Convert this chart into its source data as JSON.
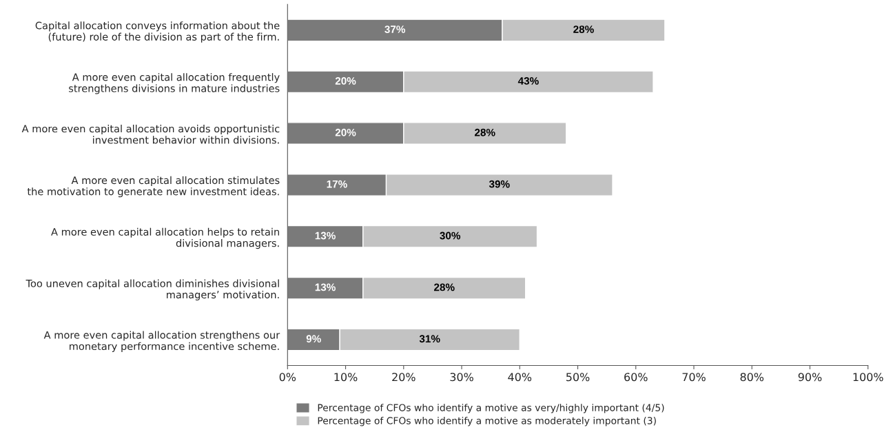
{
  "chart_data": {
    "type": "bar",
    "orientation": "horizontal",
    "stacked": true,
    "legend": "bottom",
    "grid": false,
    "categories": [
      "Capital allocation conveys information about the\n(future) role of the division as part of the firm.",
      "A more even capital allocation frequently\nstrengthens divisions in mature industries",
      "A more even capital allocation avoids opportunistic\ninvestment behavior within divisions.",
      "A more even capital allocation stimulates\nthe motivation to generate new investment ideas.",
      "A more even capital allocation helps to retain\ndivisional managers.",
      "Too uneven capital allocation diminishes divisional\nmanagers’ motivation.",
      "A more even capital allocation strengthens our\nmonetary performance incentive scheme."
    ],
    "series": [
      {
        "name": "Percentage of CFOs who identify a motive as very/highly important (4/5)",
        "color": "#7a7a7a",
        "values": [
          37,
          20,
          20,
          17,
          13,
          13,
          9
        ],
        "value_labels": [
          "37%",
          "20%",
          "20%",
          "17%",
          "13%",
          "13%",
          "9%"
        ]
      },
      {
        "name": "Percentage of CFOs who identify a motive as moderately important (3)",
        "color": "#c3c3c3",
        "values": [
          28,
          43,
          28,
          39,
          30,
          28,
          31
        ],
        "value_labels": [
          "28%",
          "43%",
          "28%",
          "39%",
          "30%",
          "28%",
          "31%"
        ]
      }
    ],
    "xlim": [
      0,
      100
    ],
    "xticks": [
      {
        "value": 0,
        "label": "0%"
      },
      {
        "value": 10,
        "label": "10%"
      },
      {
        "value": 20,
        "label": "20%"
      },
      {
        "value": 30,
        "label": "30%"
      },
      {
        "value": 40,
        "label": "40%"
      },
      {
        "value": 50,
        "label": "50%"
      },
      {
        "value": 60,
        "label": "60%"
      },
      {
        "value": 70,
        "label": "70%"
      },
      {
        "value": 80,
        "label": "80%"
      },
      {
        "value": 90,
        "label": "90%"
      },
      {
        "value": 100,
        "label": "100%"
      }
    ]
  }
}
